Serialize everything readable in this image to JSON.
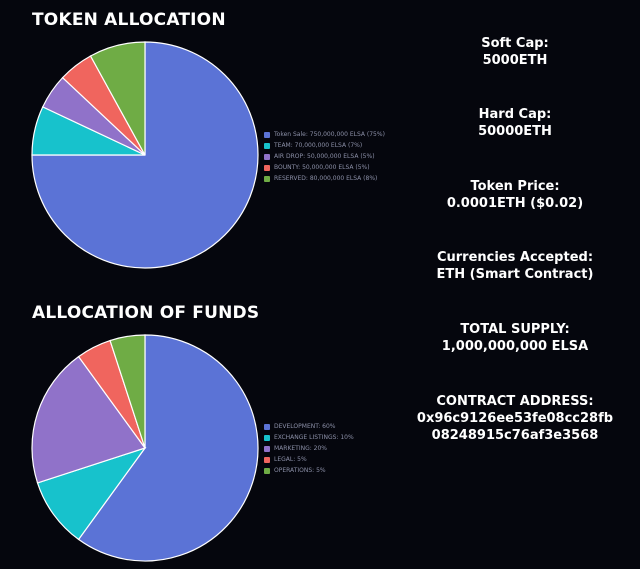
{
  "chart_data": [
    {
      "type": "pie",
      "title": "TOKEN ALLOCATION",
      "categories": [
        "Token Sale: 750,000,000 ELSA (75%)",
        "TEAM: 70,000,000 ELSA (7%)",
        "AIR DROP: 50,000,000 ELSA (5%)",
        "BOUNTY: 50,000,000 ELSA (5%)",
        "RESERVED: 80,000,000 ELSA (8%)"
      ],
      "values": [
        75,
        7,
        5,
        5,
        8
      ],
      "colors": [
        "#5b73d6",
        "#17c2cc",
        "#9072c9",
        "#f0655e",
        "#6fac45"
      ],
      "legend_position": "right"
    },
    {
      "type": "pie",
      "title": "ALLOCATION OF FUNDS",
      "categories": [
        "DEVELOPMENT: 60%",
        "EXCHANGE LISTINGS: 10%",
        "MARKETING: 20%",
        "LEGAL: 5%",
        "OPERATIONS: 5%"
      ],
      "values": [
        60,
        10,
        20,
        5,
        5
      ],
      "colors": [
        "#5b73d6",
        "#17c2cc",
        "#9072c9",
        "#f0655e",
        "#6fac45"
      ],
      "legend_position": "right"
    }
  ],
  "info": [
    {
      "label": "Soft Cap:",
      "value": "5000ETH"
    },
    {
      "label": "Hard Cap:",
      "value": "50000ETH"
    },
    {
      "label": "Token Price:",
      "value": "0.0001ETH ($0.02)"
    },
    {
      "label": "Currencies Accepted:",
      "value": "ETH (Smart Contract)"
    },
    {
      "label": "TOTAL SUPPLY:",
      "value": "1,000,000,000 ELSA"
    },
    {
      "label": "CONTRACT ADDRESS:",
      "value": "0x96c9126ee53fe08cc28fb",
      "value2": "08248915c76af3e3568"
    }
  ]
}
